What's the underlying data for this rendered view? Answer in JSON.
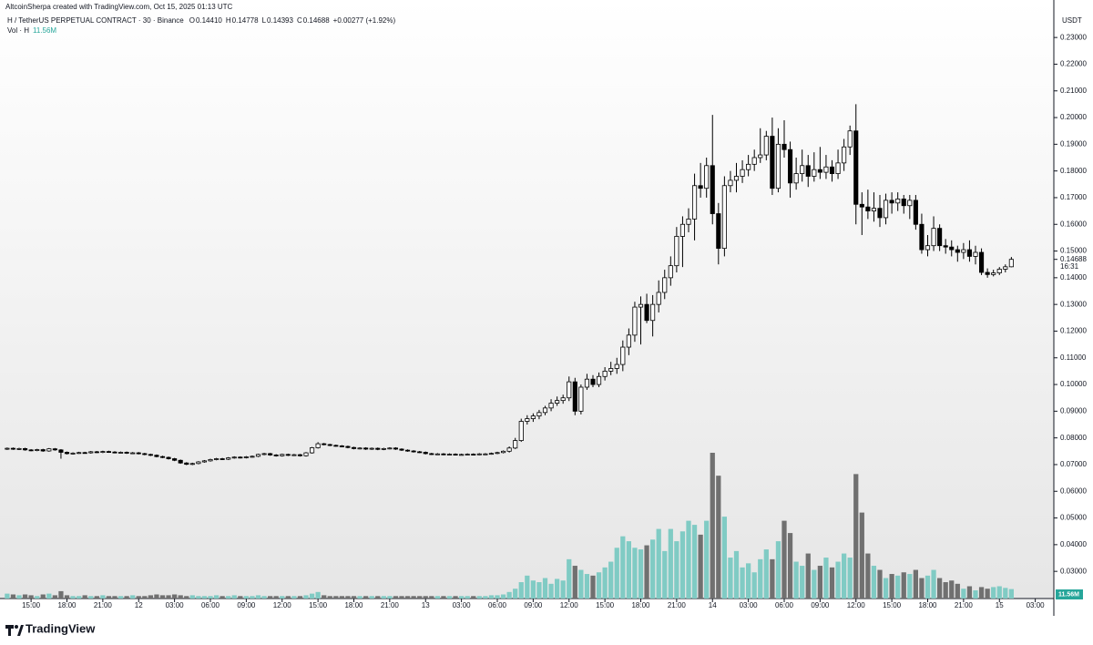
{
  "header": {
    "credit": "AltcoinSherpa created with TradingView.com, Oct 15, 2025 01:13 UTC",
    "symbol": "H / TetherUS PERPETUAL CONTRACT · 30 · Binance",
    "ohlc_legend": [
      {
        "label": "O",
        "value": "0.14410"
      },
      {
        "label": "H",
        "value": "0.14778"
      },
      {
        "label": "L",
        "value": "0.14393"
      },
      {
        "label": "C",
        "value": "0.14688"
      }
    ],
    "change": "+0.00277 (+1.92%)",
    "volume_legend": "Vol · H",
    "volume_value": "11.56M",
    "currency": "USDT",
    "last_price_label": "0.14688",
    "countdown": "16:31",
    "brand": "TradingView"
  },
  "chart_data": {
    "type": "candlestick",
    "up_color": "#ffffff",
    "down_color": "#000000",
    "wick_color": "#000000",
    "volume_up_color": "#80cbc4",
    "volume_down_color": "#707070",
    "xlim": [
      -1.2,
      174.8
    ],
    "ylim": [
      0.0205,
      0.2379
    ],
    "yticks": [
      {
        "value": 0.03,
        "label": "0.03000"
      },
      {
        "value": 0.04,
        "label": "0.04000"
      },
      {
        "value": 0.05,
        "label": "0.05000"
      },
      {
        "value": 0.06,
        "label": "0.06000"
      },
      {
        "value": 0.07,
        "label": "0.07000"
      },
      {
        "value": 0.08,
        "label": "0.08000"
      },
      {
        "value": 0.09,
        "label": "0.09000"
      },
      {
        "value": 0.1,
        "label": "0.10000"
      },
      {
        "value": 0.11,
        "label": "0.11000"
      },
      {
        "value": 0.12,
        "label": "0.12000"
      },
      {
        "value": 0.13,
        "label": "0.13000"
      },
      {
        "value": 0.14,
        "label": "0.14000"
      },
      {
        "value": 0.15,
        "label": "0.15000"
      },
      {
        "value": 0.16,
        "label": "0.16000"
      },
      {
        "value": 0.17,
        "label": "0.17000"
      },
      {
        "value": 0.18,
        "label": "0.18000"
      },
      {
        "value": 0.19,
        "label": "0.19000"
      },
      {
        "value": 0.2,
        "label": "0.20000"
      },
      {
        "value": 0.21,
        "label": "0.21000"
      },
      {
        "value": 0.22,
        "label": "0.22000"
      },
      {
        "value": 0.23,
        "label": "0.23000"
      }
    ],
    "xticks": [
      {
        "value": 4,
        "label": "15:00"
      },
      {
        "value": 10,
        "label": "18:00"
      },
      {
        "value": 16,
        "label": "21:00"
      },
      {
        "value": 22,
        "label": "12"
      },
      {
        "value": 28,
        "label": "03:00"
      },
      {
        "value": 34,
        "label": "06:00"
      },
      {
        "value": 40,
        "label": "09:00"
      },
      {
        "value": 46,
        "label": "12:00"
      },
      {
        "value": 52,
        "label": "15:00"
      },
      {
        "value": 58,
        "label": "18:00"
      },
      {
        "value": 64,
        "label": "21:00"
      },
      {
        "value": 70,
        "label": "13"
      },
      {
        "value": 76,
        "label": "03:00"
      },
      {
        "value": 82,
        "label": "06:00"
      },
      {
        "value": 88,
        "label": "09:00"
      },
      {
        "value": 94,
        "label": "12:00"
      },
      {
        "value": 100,
        "label": "15:00"
      },
      {
        "value": 106,
        "label": "18:00"
      },
      {
        "value": 112,
        "label": "21:00"
      },
      {
        "value": 118,
        "label": "14"
      },
      {
        "value": 124,
        "label": "03:00"
      },
      {
        "value": 130,
        "label": "06:00"
      },
      {
        "value": 136,
        "label": "09:00"
      },
      {
        "value": 142,
        "label": "12:00"
      },
      {
        "value": 148,
        "label": "15:00"
      },
      {
        "value": 154,
        "label": "18:00"
      },
      {
        "value": 160,
        "label": "21:00"
      },
      {
        "value": 166,
        "label": "15"
      },
      {
        "value": 172,
        "label": "03:00"
      }
    ],
    "ohlc": [
      [
        0.0758,
        0.0764,
        0.0755,
        0.0761
      ],
      [
        0.0761,
        0.0764,
        0.0755,
        0.0758
      ],
      [
        0.0758,
        0.0763,
        0.0755,
        0.076
      ],
      [
        0.076,
        0.0763,
        0.0752,
        0.0755
      ],
      [
        0.0755,
        0.0758,
        0.075,
        0.0753
      ],
      [
        0.0753,
        0.0759,
        0.075,
        0.0756
      ],
      [
        0.0756,
        0.0759,
        0.0748,
        0.0751
      ],
      [
        0.0751,
        0.0762,
        0.0748,
        0.0759
      ],
      [
        0.0759,
        0.0762,
        0.0752,
        0.0755
      ],
      [
        0.0755,
        0.0758,
        0.0722,
        0.0746
      ],
      [
        0.0746,
        0.0749,
        0.0738,
        0.0741
      ],
      [
        0.0741,
        0.0746,
        0.0738,
        0.0743
      ],
      [
        0.0743,
        0.0748,
        0.074,
        0.0745
      ],
      [
        0.0745,
        0.0748,
        0.0741,
        0.0744
      ],
      [
        0.0744,
        0.0751,
        0.0741,
        0.0748
      ],
      [
        0.0748,
        0.0751,
        0.0743,
        0.0746
      ],
      [
        0.0746,
        0.0752,
        0.0743,
        0.0749
      ],
      [
        0.0749,
        0.0752,
        0.0744,
        0.0747
      ],
      [
        0.0747,
        0.075,
        0.0742,
        0.0745
      ],
      [
        0.0745,
        0.0749,
        0.0742,
        0.0746
      ],
      [
        0.0746,
        0.0749,
        0.074,
        0.0743
      ],
      [
        0.0743,
        0.0747,
        0.074,
        0.0744
      ],
      [
        0.0744,
        0.0747,
        0.0738,
        0.0741
      ],
      [
        0.0741,
        0.0744,
        0.0735,
        0.0738
      ],
      [
        0.0738,
        0.0741,
        0.0732,
        0.0735
      ],
      [
        0.0735,
        0.0738,
        0.0727,
        0.073
      ],
      [
        0.073,
        0.0733,
        0.0724,
        0.0727
      ],
      [
        0.0727,
        0.073,
        0.0719,
        0.0722
      ],
      [
        0.0722,
        0.0725,
        0.0713,
        0.0716
      ],
      [
        0.0716,
        0.0719,
        0.0703,
        0.0706
      ],
      [
        0.0706,
        0.0709,
        0.0698,
        0.0701
      ],
      [
        0.0701,
        0.0707,
        0.0698,
        0.0704
      ],
      [
        0.0704,
        0.0713,
        0.0701,
        0.071
      ],
      [
        0.071,
        0.0717,
        0.0707,
        0.0714
      ],
      [
        0.0714,
        0.0722,
        0.0711,
        0.0719
      ],
      [
        0.0719,
        0.0725,
        0.0716,
        0.0722
      ],
      [
        0.0722,
        0.0725,
        0.0717,
        0.072
      ],
      [
        0.072,
        0.0728,
        0.0717,
        0.0725
      ],
      [
        0.0725,
        0.0731,
        0.0722,
        0.0728
      ],
      [
        0.0728,
        0.0731,
        0.0723,
        0.0726
      ],
      [
        0.0726,
        0.0732,
        0.0723,
        0.0729
      ],
      [
        0.0729,
        0.0734,
        0.0726,
        0.0731
      ],
      [
        0.0731,
        0.0741,
        0.0728,
        0.0738
      ],
      [
        0.0738,
        0.0744,
        0.0735,
        0.0741
      ],
      [
        0.0741,
        0.0744,
        0.0733,
        0.0736
      ],
      [
        0.0736,
        0.0739,
        0.073,
        0.0733
      ],
      [
        0.0733,
        0.0741,
        0.073,
        0.0738
      ],
      [
        0.0738,
        0.0741,
        0.0732,
        0.0735
      ],
      [
        0.0735,
        0.074,
        0.0732,
        0.0737
      ],
      [
        0.0737,
        0.074,
        0.073,
        0.0733
      ],
      [
        0.0733,
        0.0747,
        0.073,
        0.0744
      ],
      [
        0.0744,
        0.0766,
        0.0741,
        0.0763
      ],
      [
        0.0763,
        0.0784,
        0.076,
        0.0778
      ],
      [
        0.0778,
        0.0781,
        0.0772,
        0.0775
      ],
      [
        0.0775,
        0.0778,
        0.0769,
        0.0772
      ],
      [
        0.0772,
        0.0775,
        0.0767,
        0.077
      ],
      [
        0.077,
        0.0773,
        0.0765,
        0.0768
      ],
      [
        0.0768,
        0.0771,
        0.0761,
        0.0764
      ],
      [
        0.0764,
        0.0767,
        0.0757,
        0.076
      ],
      [
        0.076,
        0.0765,
        0.0757,
        0.0762
      ],
      [
        0.0762,
        0.0765,
        0.0755,
        0.0758
      ],
      [
        0.0758,
        0.0764,
        0.0755,
        0.0761
      ],
      [
        0.0761,
        0.0764,
        0.0754,
        0.0757
      ],
      [
        0.0757,
        0.0763,
        0.0754,
        0.076
      ],
      [
        0.076,
        0.0765,
        0.0757,
        0.0762
      ],
      [
        0.0762,
        0.0765,
        0.0755,
        0.0758
      ],
      [
        0.0758,
        0.0761,
        0.0751,
        0.0754
      ],
      [
        0.0754,
        0.0757,
        0.0748,
        0.0751
      ],
      [
        0.0751,
        0.0754,
        0.0745,
        0.0748
      ],
      [
        0.0748,
        0.0751,
        0.0743,
        0.0746
      ],
      [
        0.0746,
        0.0749,
        0.0738,
        0.0741
      ],
      [
        0.0741,
        0.0744,
        0.0736,
        0.0739
      ],
      [
        0.0739,
        0.0743,
        0.0736,
        0.074
      ],
      [
        0.074,
        0.0743,
        0.0735,
        0.0738
      ],
      [
        0.0738,
        0.0742,
        0.0735,
        0.0739
      ],
      [
        0.0739,
        0.0742,
        0.0734,
        0.0737
      ],
      [
        0.0737,
        0.0741,
        0.0734,
        0.0738
      ],
      [
        0.0738,
        0.0742,
        0.0735,
        0.0739
      ],
      [
        0.0739,
        0.0742,
        0.0735,
        0.0738
      ],
      [
        0.0738,
        0.0743,
        0.0735,
        0.074
      ],
      [
        0.074,
        0.0743,
        0.0737,
        0.074
      ],
      [
        0.074,
        0.0745,
        0.0737,
        0.0742
      ],
      [
        0.0742,
        0.0748,
        0.0739,
        0.0745
      ],
      [
        0.0745,
        0.0753,
        0.0742,
        0.075
      ],
      [
        0.075,
        0.0768,
        0.0745,
        0.0762
      ],
      [
        0.0762,
        0.08,
        0.0758,
        0.079
      ],
      [
        0.079,
        0.0872,
        0.0785,
        0.0862
      ],
      [
        0.0862,
        0.0885,
        0.085,
        0.0872
      ],
      [
        0.0872,
        0.0892,
        0.086,
        0.0882
      ],
      [
        0.0882,
        0.0905,
        0.087,
        0.0895
      ],
      [
        0.0895,
        0.092,
        0.0885,
        0.0912
      ],
      [
        0.0912,
        0.0945,
        0.09,
        0.093
      ],
      [
        0.093,
        0.0955,
        0.092,
        0.094
      ],
      [
        0.094,
        0.0962,
        0.0928,
        0.095
      ],
      [
        0.095,
        0.103,
        0.0938,
        0.101
      ],
      [
        0.101,
        0.1025,
        0.0885,
        0.09
      ],
      [
        0.09,
        0.1,
        0.0888,
        0.099
      ],
      [
        0.099,
        0.104,
        0.098,
        0.102
      ],
      [
        0.102,
        0.1035,
        0.099,
        0.1
      ],
      [
        0.1,
        0.1045,
        0.099,
        0.103
      ],
      [
        0.103,
        0.1065,
        0.1015,
        0.105
      ],
      [
        0.105,
        0.1085,
        0.1035,
        0.106
      ],
      [
        0.106,
        0.11,
        0.104,
        0.1075
      ],
      [
        0.1075,
        0.1165,
        0.105,
        0.114
      ],
      [
        0.114,
        0.121,
        0.111,
        0.1185
      ],
      [
        0.1185,
        0.131,
        0.116,
        0.129
      ],
      [
        0.129,
        0.133,
        0.115,
        0.13
      ],
      [
        0.13,
        0.134,
        0.123,
        0.124
      ],
      [
        0.124,
        0.1335,
        0.118,
        0.13
      ],
      [
        0.13,
        0.139,
        0.127,
        0.1345
      ],
      [
        0.1345,
        0.143,
        0.132,
        0.14
      ],
      [
        0.14,
        0.148,
        0.137,
        0.1445
      ],
      [
        0.1445,
        0.159,
        0.142,
        0.1555
      ],
      [
        0.1555,
        0.163,
        0.144,
        0.16
      ],
      [
        0.16,
        0.166,
        0.157,
        0.162
      ],
      [
        0.162,
        0.179,
        0.154,
        0.1745
      ],
      [
        0.1745,
        0.183,
        0.17,
        0.1735
      ],
      [
        0.1735,
        0.185,
        0.17,
        0.182
      ],
      [
        0.182,
        0.201,
        0.16,
        0.164
      ],
      [
        0.164,
        0.168,
        0.145,
        0.151
      ],
      [
        0.151,
        0.178,
        0.148,
        0.1745
      ],
      [
        0.1745,
        0.18,
        0.172,
        0.1765
      ],
      [
        0.1765,
        0.183,
        0.172,
        0.178
      ],
      [
        0.178,
        0.184,
        0.1755,
        0.1805
      ],
      [
        0.1805,
        0.186,
        0.178,
        0.1825
      ],
      [
        0.1825,
        0.188,
        0.18,
        0.185
      ],
      [
        0.185,
        0.196,
        0.183,
        0.186
      ],
      [
        0.186,
        0.195,
        0.184,
        0.193
      ],
      [
        0.193,
        0.2,
        0.171,
        0.1735
      ],
      [
        0.1735,
        0.196,
        0.172,
        0.19
      ],
      [
        0.19,
        0.199,
        0.185,
        0.188
      ],
      [
        0.188,
        0.191,
        0.17,
        0.1755
      ],
      [
        0.1755,
        0.185,
        0.173,
        0.179
      ],
      [
        0.179,
        0.188,
        0.176,
        0.182
      ],
      [
        0.182,
        0.186,
        0.174,
        0.178
      ],
      [
        0.178,
        0.187,
        0.176,
        0.1805
      ],
      [
        0.1805,
        0.189,
        0.177,
        0.1795
      ],
      [
        0.1795,
        0.186,
        0.177,
        0.1815
      ],
      [
        0.1815,
        0.184,
        0.176,
        0.179
      ],
      [
        0.179,
        0.188,
        0.177,
        0.183
      ],
      [
        0.183,
        0.192,
        0.18,
        0.189
      ],
      [
        0.189,
        0.197,
        0.186,
        0.195
      ],
      [
        0.195,
        0.205,
        0.16,
        0.1675
      ],
      [
        0.1675,
        0.172,
        0.156,
        0.1665
      ],
      [
        0.1665,
        0.173,
        0.162,
        0.165
      ],
      [
        0.165,
        0.172,
        0.161,
        0.166
      ],
      [
        0.166,
        0.171,
        0.159,
        0.1625
      ],
      [
        0.1625,
        0.1715,
        0.16,
        0.169
      ],
      [
        0.169,
        0.172,
        0.164,
        0.168
      ],
      [
        0.168,
        0.172,
        0.165,
        0.1695
      ],
      [
        0.1695,
        0.171,
        0.164,
        0.167
      ],
      [
        0.167,
        0.171,
        0.162,
        0.169
      ],
      [
        0.169,
        0.171,
        0.158,
        0.16
      ],
      [
        0.16,
        0.164,
        0.149,
        0.1505
      ],
      [
        0.1505,
        0.156,
        0.148,
        0.152
      ],
      [
        0.152,
        0.163,
        0.15,
        0.1585
      ],
      [
        0.1585,
        0.16,
        0.15,
        0.152
      ],
      [
        0.152,
        0.1545,
        0.149,
        0.1515
      ],
      [
        0.1515,
        0.154,
        0.148,
        0.1505
      ],
      [
        0.1505,
        0.152,
        0.146,
        0.1495
      ],
      [
        0.1495,
        0.153,
        0.147,
        0.1505
      ],
      [
        0.1505,
        0.154,
        0.146,
        0.148
      ],
      [
        0.148,
        0.152,
        0.145,
        0.1495
      ],
      [
        0.1495,
        0.151,
        0.141,
        0.142
      ],
      [
        0.142,
        0.1435,
        0.14,
        0.1412
      ],
      [
        0.1412,
        0.143,
        0.1405,
        0.1418
      ],
      [
        0.1418,
        0.144,
        0.141,
        0.1432
      ],
      [
        0.1432,
        0.145,
        0.142,
        0.1441
      ],
      [
        0.1441,
        0.14778,
        0.14393,
        0.14688
      ]
    ],
    "volume": [
      6,
      5,
      4,
      5,
      4,
      3,
      5,
      6,
      4,
      9,
      4,
      3,
      3,
      4,
      3,
      3,
      4,
      3,
      3,
      3,
      3,
      4,
      3,
      3,
      4,
      5,
      4,
      4,
      5,
      4,
      3,
      4,
      3,
      3,
      3,
      4,
      3,
      3,
      4,
      3,
      3,
      3,
      4,
      3,
      3,
      3,
      3,
      3,
      3,
      3,
      4,
      6,
      8,
      4,
      3,
      3,
      3,
      3,
      3,
      3,
      3,
      3,
      3,
      3,
      3,
      3,
      3,
      3,
      3,
      3,
      3,
      3,
      3,
      3,
      3,
      3,
      3,
      3,
      3,
      3,
      3,
      4,
      4,
      5,
      8,
      12,
      20,
      28,
      22,
      20,
      25,
      18,
      24,
      22,
      48,
      40,
      35,
      30,
      28,
      32,
      38,
      45,
      62,
      76,
      70,
      62,
      60,
      65,
      72,
      85,
      58,
      85,
      70,
      82,
      95,
      90,
      78,
      95,
      178,
      150,
      100,
      50,
      58,
      38,
      43,
      32,
      48,
      60,
      48,
      70,
      95,
      80,
      45,
      40,
      55,
      35,
      40,
      50,
      38,
      45,
      55,
      50,
      152,
      105,
      55,
      40,
      35,
      25,
      30,
      28,
      32,
      30,
      35,
      25,
      28,
      35,
      25,
      20,
      22,
      18,
      12,
      15,
      10,
      14,
      12,
      14,
      15,
      13,
      11.56
    ]
  }
}
